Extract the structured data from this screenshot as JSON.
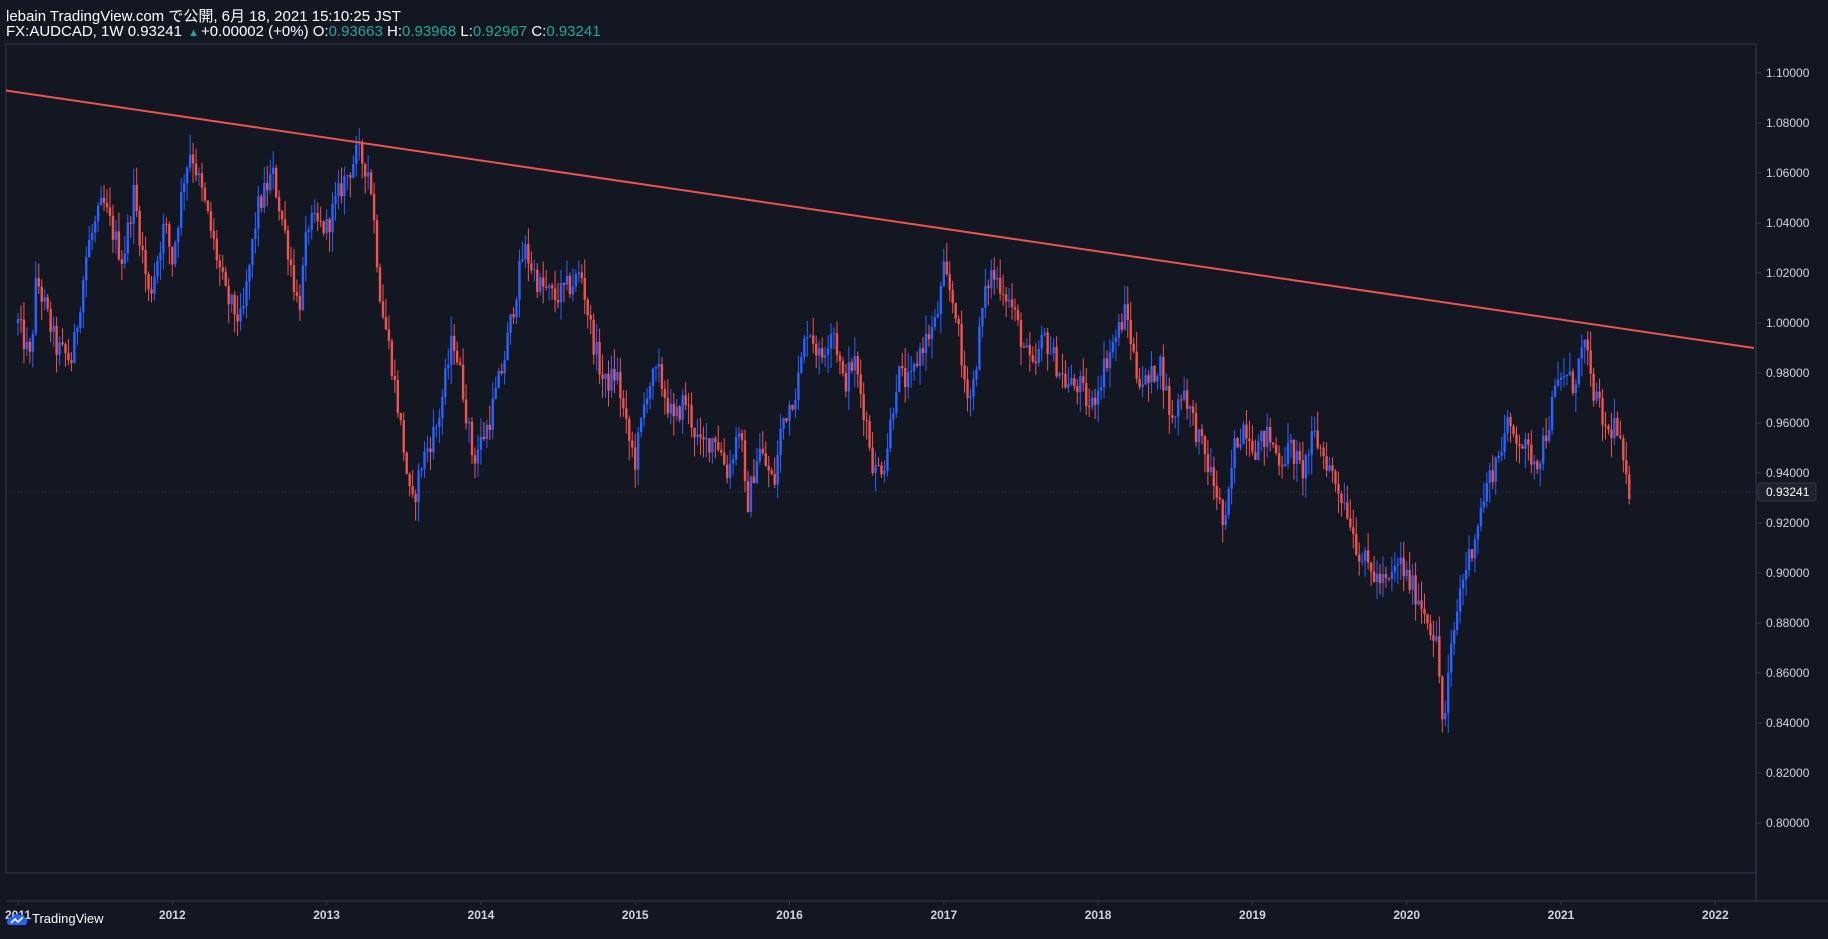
{
  "header": {
    "publisher_line": "lebain TradingView.com で公開, 6月 18, 2021 15:10:25 JST",
    "symbol": "FX:AUDCAD, 1W",
    "last_price": "0.93241",
    "change": "+0.00002 (+0%)",
    "o_label": "O:",
    "o_value": "0.93663",
    "h_label": "H:",
    "h_value": "0.93968",
    "l_label": "L:",
    "l_value": "0.92967",
    "c_label": "C:",
    "c_value": "0.93241"
  },
  "footer": {
    "brand": "TradingView"
  },
  "colors": {
    "background": "#131722",
    "up": "#2962ff",
    "down": "#ef5350",
    "trendline": "#ef5350",
    "axis_text": "#d1d4dc",
    "border": "#363a45"
  },
  "chart_data": {
    "type": "candlestick",
    "title": "FX:AUDCAD, 1W",
    "interval": "1W",
    "x_range": [
      2011.0,
      2022.25
    ],
    "x_ticks": [
      "2011",
      "2012",
      "2013",
      "2014",
      "2015",
      "2016",
      "2017",
      "2018",
      "2019",
      "2020",
      "2021",
      "2022"
    ],
    "ylim": [
      0.78,
      1.11
    ],
    "y_ticks": [
      "1.10000",
      "1.08000",
      "1.06000",
      "1.04000",
      "1.02000",
      "1.00000",
      "0.98000",
      "0.96000",
      "0.94000",
      "0.92000",
      "0.90000",
      "0.88000",
      "0.86000",
      "0.84000",
      "0.82000",
      "0.80000"
    ],
    "current_price_label": "0.93241",
    "current_price": 0.93241,
    "trendline": {
      "from": [
        2010.9,
        1.093
      ],
      "to": [
        2022.25,
        0.99
      ]
    },
    "path": [
      [
        2011.0,
        1.0
      ],
      [
        2011.08,
        0.985
      ],
      [
        2011.12,
        1.018
      ],
      [
        2011.25,
        0.99
      ],
      [
        2011.35,
        0.985
      ],
      [
        2011.45,
        1.03
      ],
      [
        2011.55,
        1.048
      ],
      [
        2011.68,
        1.025
      ],
      [
        2011.75,
        1.052
      ],
      [
        2011.85,
        1.01
      ],
      [
        2011.95,
        1.04
      ],
      [
        2012.0,
        1.025
      ],
      [
        2012.08,
        1.06
      ],
      [
        2012.12,
        1.07
      ],
      [
        2012.22,
        1.045
      ],
      [
        2012.35,
        1.01
      ],
      [
        2012.45,
        1.0
      ],
      [
        2012.55,
        1.045
      ],
      [
        2012.65,
        1.06
      ],
      [
        2012.75,
        1.03
      ],
      [
        2012.82,
        1.005
      ],
      [
        2012.88,
        1.04
      ],
      [
        2013.0,
        1.038
      ],
      [
        2013.1,
        1.055
      ],
      [
        2013.2,
        1.068
      ],
      [
        2013.28,
        1.06
      ],
      [
        2013.35,
        1.01
      ],
      [
        2013.42,
        0.985
      ],
      [
        2013.5,
        0.95
      ],
      [
        2013.55,
        0.925
      ],
      [
        2013.62,
        0.945
      ],
      [
        2013.72,
        0.96
      ],
      [
        2013.82,
        0.995
      ],
      [
        2013.88,
        0.975
      ],
      [
        2013.95,
        0.945
      ],
      [
        2014.05,
        0.96
      ],
      [
        2014.15,
        0.985
      ],
      [
        2014.22,
        1.01
      ],
      [
        2014.28,
        1.03
      ],
      [
        2014.38,
        1.015
      ],
      [
        2014.48,
        1.01
      ],
      [
        2014.58,
        1.015
      ],
      [
        2014.65,
        1.02
      ],
      [
        2014.72,
        0.995
      ],
      [
        2014.8,
        0.975
      ],
      [
        2014.88,
        0.98
      ],
      [
        2014.95,
        0.955
      ],
      [
        2015.0,
        0.945
      ],
      [
        2015.08,
        0.975
      ],
      [
        2015.15,
        0.98
      ],
      [
        2015.25,
        0.96
      ],
      [
        2015.32,
        0.97
      ],
      [
        2015.42,
        0.95
      ],
      [
        2015.52,
        0.955
      ],
      [
        2015.6,
        0.94
      ],
      [
        2015.68,
        0.96
      ],
      [
        2015.72,
        0.925
      ],
      [
        2015.8,
        0.95
      ],
      [
        2015.9,
        0.935
      ],
      [
        2015.95,
        0.96
      ],
      [
        2016.05,
        0.975
      ],
      [
        2016.12,
        1.0
      ],
      [
        2016.2,
        0.985
      ],
      [
        2016.28,
        1.0
      ],
      [
        2016.35,
        0.975
      ],
      [
        2016.42,
        0.985
      ],
      [
        2016.5,
        0.96
      ],
      [
        2016.55,
        0.94
      ],
      [
        2016.62,
        0.945
      ],
      [
        2016.7,
        0.98
      ],
      [
        2016.78,
        0.975
      ],
      [
        2016.85,
        0.99
      ],
      [
        2016.95,
        1.0
      ],
      [
        2017.0,
        1.02
      ],
      [
        2017.08,
        1.005
      ],
      [
        2017.12,
        0.98
      ],
      [
        2017.18,
        0.97
      ],
      [
        2017.25,
        1.005
      ],
      [
        2017.3,
        1.02
      ],
      [
        2017.38,
        1.015
      ],
      [
        2017.45,
        1.005
      ],
      [
        2017.52,
        0.99
      ],
      [
        2017.58,
        0.98
      ],
      [
        2017.65,
        0.995
      ],
      [
        2017.72,
        0.985
      ],
      [
        2017.8,
        0.975
      ],
      [
        2017.88,
        0.975
      ],
      [
        2017.95,
        0.965
      ],
      [
        2018.05,
        0.985
      ],
      [
        2018.12,
        0.995
      ],
      [
        2018.18,
        1.005
      ],
      [
        2018.25,
        0.98
      ],
      [
        2018.32,
        0.975
      ],
      [
        2018.4,
        0.985
      ],
      [
        2018.48,
        0.96
      ],
      [
        2018.55,
        0.975
      ],
      [
        2018.62,
        0.96
      ],
      [
        2018.7,
        0.945
      ],
      [
        2018.78,
        0.93
      ],
      [
        2018.82,
        0.915
      ],
      [
        2018.88,
        0.95
      ],
      [
        2018.95,
        0.96
      ],
      [
        2019.02,
        0.95
      ],
      [
        2019.1,
        0.955
      ],
      [
        2019.18,
        0.945
      ],
      [
        2019.25,
        0.95
      ],
      [
        2019.32,
        0.94
      ],
      [
        2019.4,
        0.955
      ],
      [
        2019.48,
        0.945
      ],
      [
        2019.55,
        0.935
      ],
      [
        2019.62,
        0.925
      ],
      [
        2019.68,
        0.91
      ],
      [
        2019.72,
        0.905
      ],
      [
        2019.8,
        0.898
      ],
      [
        2019.88,
        0.895
      ],
      [
        2019.95,
        0.905
      ],
      [
        2020.0,
        0.898
      ],
      [
        2020.08,
        0.89
      ],
      [
        2020.15,
        0.88
      ],
      [
        2020.2,
        0.87
      ],
      [
        2020.22,
        0.85
      ],
      [
        2020.24,
        0.835
      ],
      [
        2020.28,
        0.865
      ],
      [
        2020.35,
        0.895
      ],
      [
        2020.42,
        0.91
      ],
      [
        2020.48,
        0.925
      ],
      [
        2020.52,
        0.935
      ],
      [
        2020.58,
        0.945
      ],
      [
        2020.65,
        0.958
      ],
      [
        2020.72,
        0.955
      ],
      [
        2020.78,
        0.948
      ],
      [
        2020.85,
        0.945
      ],
      [
        2020.92,
        0.96
      ],
      [
        2020.96,
        0.972
      ],
      [
        2021.02,
        0.98
      ],
      [
        2021.08,
        0.975
      ],
      [
        2021.12,
        0.985
      ],
      [
        2021.15,
        0.992
      ],
      [
        2021.2,
        0.975
      ],
      [
        2021.25,
        0.965
      ],
      [
        2021.3,
        0.955
      ],
      [
        2021.35,
        0.96
      ],
      [
        2021.4,
        0.945
      ],
      [
        2021.42,
        0.935
      ],
      [
        2021.46,
        0.932
      ]
    ]
  }
}
